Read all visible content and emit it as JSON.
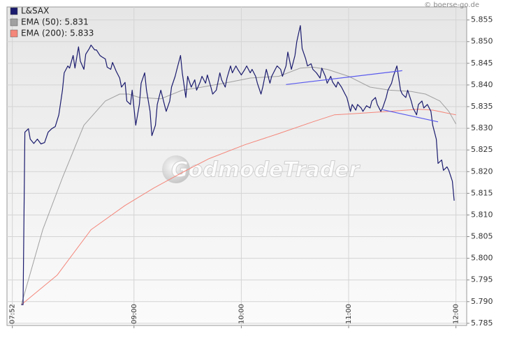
{
  "chart_data": {
    "type": "line",
    "source": "© boerse-go.de",
    "watermark": "GodmodeTrader",
    "xlim": [
      469,
      726
    ],
    "ylim": [
      5.7845,
      5.858
    ],
    "grid": true,
    "legend": "top-left",
    "xticks": [
      {
        "value": 472,
        "label": "07:52"
      },
      {
        "value": 540,
        "label": "09:00"
      },
      {
        "value": 600,
        "label": "10:00"
      },
      {
        "value": 660,
        "label": "11:00"
      },
      {
        "value": 720,
        "label": "12:00"
      }
    ],
    "yticks": [
      5.785,
      {
        "value": 5.79,
        "label": "5.790"
      },
      5.795,
      {
        "value": 5.8,
        "label": "5.800"
      },
      5.805,
      {
        "value": 5.81,
        "label": "5.810"
      },
      5.815,
      {
        "value": 5.82,
        "label": "5.820"
      },
      5.825,
      {
        "value": 5.83,
        "label": "5.830"
      },
      5.835,
      {
        "value": 5.84,
        "label": "5.840"
      },
      5.845,
      {
        "value": 5.85,
        "label": "5.850"
      },
      5.855
    ],
    "series": [
      {
        "name": "L&SAX",
        "color": "#1a1a6e",
        "x": [
          477,
          478,
          479,
          481,
          482,
          484,
          486,
          488,
          490,
          492,
          494,
          496,
          498,
          500,
          501,
          503,
          504,
          506,
          507,
          509,
          510,
          512,
          513,
          515,
          516,
          518,
          519,
          521,
          522,
          524,
          525,
          527,
          528,
          530,
          532,
          533,
          535,
          536,
          538,
          539,
          541,
          543,
          544,
          546,
          547,
          549,
          550,
          552,
          553,
          555,
          557,
          558,
          560,
          561,
          563,
          564,
          566,
          567,
          569,
          570,
          572,
          574,
          575,
          577,
          578,
          580,
          581,
          583,
          584,
          586,
          588,
          589,
          591,
          592,
          594,
          595,
          597,
          598,
          600,
          602,
          603,
          605,
          606,
          608,
          609,
          611,
          612,
          614,
          616,
          617,
          619,
          620,
          622,
          623,
          625,
          626,
          628,
          630,
          631,
          633,
          634,
          636,
          637,
          639,
          640,
          642,
          644,
          645,
          647,
          648,
          650,
          651,
          653,
          654,
          656,
          658,
          659,
          661,
          662,
          664,
          665,
          667,
          668,
          670,
          672,
          673,
          675,
          676,
          678,
          679,
          681,
          682,
          684,
          685,
          687,
          689,
          690,
          692,
          693,
          695,
          696,
          698,
          699,
          701,
          702,
          704,
          706,
          707,
          709,
          710,
          712,
          713,
          715,
          716,
          718,
          719
        ],
        "values": [
          5.7893,
          5.7893,
          5.8291,
          5.8299,
          5.8275,
          5.8265,
          5.8275,
          5.8264,
          5.8267,
          5.8291,
          5.8299,
          5.8304,
          5.8331,
          5.8388,
          5.8428,
          5.8444,
          5.8439,
          5.8468,
          5.8439,
          5.8488,
          5.8455,
          5.8436,
          5.8471,
          5.8484,
          5.8492,
          5.8481,
          5.8481,
          5.8468,
          5.8465,
          5.846,
          5.8441,
          5.8436,
          5.8452,
          5.8432,
          5.8416,
          5.8395,
          5.8406,
          5.8363,
          5.8355,
          5.8388,
          5.8307,
          5.8355,
          5.8404,
          5.8428,
          5.8388,
          5.8339,
          5.8283,
          5.8307,
          5.8355,
          5.8388,
          5.8355,
          5.8339,
          5.8363,
          5.8395,
          5.842,
          5.8436,
          5.8468,
          5.8428,
          5.8371,
          5.842,
          5.8395,
          5.8412,
          5.8388,
          5.8407,
          5.842,
          5.8404,
          5.8423,
          5.8395,
          5.8379,
          5.8388,
          5.8428,
          5.8412,
          5.8395,
          5.8416,
          5.8444,
          5.8428,
          5.8444,
          5.8436,
          5.8423,
          5.8436,
          5.8444,
          5.8428,
          5.8436,
          5.842,
          5.8404,
          5.8379,
          5.8395,
          5.8436,
          5.8404,
          5.842,
          5.8436,
          5.8444,
          5.8436,
          5.842,
          5.8444,
          5.8476,
          5.8436,
          5.8468,
          5.85,
          5.8537,
          5.8484,
          5.846,
          5.8444,
          5.8449,
          5.8436,
          5.8428,
          5.8416,
          5.8439,
          5.842,
          5.8404,
          5.842,
          5.8407,
          5.8395,
          5.8407,
          5.8395,
          5.8379,
          5.8371,
          5.8339,
          5.8355,
          5.8342,
          5.8355,
          5.8347,
          5.8339,
          5.8352,
          5.8347,
          5.8363,
          5.8371,
          5.8355,
          5.8339,
          5.8347,
          5.8371,
          5.8388,
          5.8404,
          5.842,
          5.8444,
          5.8388,
          5.8379,
          5.8371,
          5.8388,
          5.8363,
          5.8347,
          5.8331,
          5.8355,
          5.8363,
          5.8347,
          5.8355,
          5.8339,
          5.8307,
          5.8275,
          5.8219,
          5.8227,
          5.8203,
          5.8211,
          5.8203,
          5.8178,
          5.8133
        ]
      },
      {
        "name": "EMA (50): 5.831",
        "color": "#a0a0a0",
        "x": [
          477,
          489,
          500,
          512,
          524,
          532,
          537,
          543,
          555,
          567,
          578,
          594,
          605,
          621,
          633,
          640,
          648,
          660,
          672,
          683,
          695,
          703,
          711,
          716,
          720
        ],
        "values": [
          5.7893,
          5.8066,
          5.8186,
          5.8307,
          5.8363,
          5.8379,
          5.8379,
          5.8371,
          5.8368,
          5.8388,
          5.8395,
          5.8407,
          5.8416,
          5.842,
          5.8439,
          5.8441,
          5.8436,
          5.842,
          5.8395,
          5.8388,
          5.8385,
          5.8379,
          5.8363,
          5.8339,
          5.831
        ]
      },
      {
        "name": "EMA (200): 5.833",
        "color": "#f4867a",
        "x": [
          477,
          497,
          516,
          535,
          551,
          567,
          582,
          602,
          621,
          640,
          652,
          668,
          683,
          699,
          707,
          714,
          720
        ],
        "values": [
          5.7893,
          5.7961,
          5.8066,
          5.8122,
          5.8162,
          5.8198,
          5.823,
          5.8262,
          5.8288,
          5.8315,
          5.8331,
          5.8335,
          5.8339,
          5.8344,
          5.8342,
          5.8336,
          5.8331
        ]
      }
    ],
    "trendlines": [
      {
        "color": "#5a5aee",
        "x": [
          625,
          690
        ],
        "values": [
          5.8401,
          5.8433
        ]
      },
      {
        "color": "#5a5aee",
        "x": [
          679,
          710
        ],
        "values": [
          5.8343,
          5.8315
        ]
      }
    ]
  }
}
